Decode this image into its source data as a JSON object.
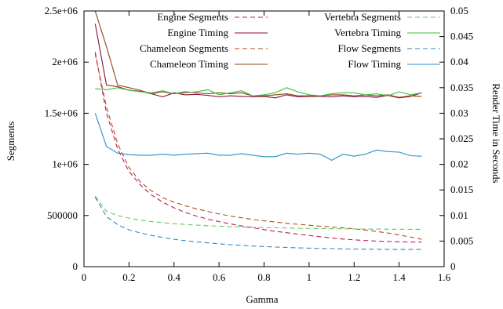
{
  "chart_data": {
    "type": "line",
    "xlabel": "Gamma",
    "ylabel": "Segments",
    "y2label": "Render Time in Seconds",
    "xlim": [
      0,
      1.6
    ],
    "ylim": [
      0,
      2500000
    ],
    "y2lim": [
      0,
      0.05
    ],
    "xticks": [
      "0",
      "0.2",
      "0.4",
      "0.6",
      "0.8",
      "1",
      "1.2",
      "1.4",
      "1.6"
    ],
    "yticks": [
      "0",
      "500000",
      "1e+06",
      "1.5e+06",
      "2e+06",
      "2.5e+06"
    ],
    "y2ticks": [
      "0",
      "0.005",
      "0.01",
      "0.015",
      "0.02",
      "0.025",
      "0.03",
      "0.035",
      "0.04",
      "0.045",
      "0.05"
    ],
    "legend_position": "top",
    "grid": false,
    "x": [
      0.05,
      0.1,
      0.15,
      0.2,
      0.25,
      0.3,
      0.35,
      0.4,
      0.45,
      0.5,
      0.55,
      0.6,
      0.65,
      0.7,
      0.75,
      0.8,
      0.85,
      0.9,
      0.95,
      1.0,
      1.05,
      1.1,
      1.15,
      1.2,
      1.25,
      1.3,
      1.35,
      1.4,
      1.45,
      1.5
    ],
    "series": [
      {
        "name": "Engine Segments",
        "axis": "y1",
        "dash": true,
        "color": "#c0185a",
        "values": [
          2100000,
          1500000,
          1150000,
          930000,
          800000,
          700000,
          630000,
          575000,
          530000,
          495000,
          465000,
          440000,
          418000,
          398000,
          380000,
          362000,
          346000,
          332000,
          318000,
          305000,
          292000,
          280000,
          270000,
          262000,
          255000,
          250000,
          246000,
          243000,
          241000,
          240000
        ]
      },
      {
        "name": "Engine Timing",
        "axis": "y2",
        "dash": false,
        "color": "#8a0f3c",
        "values": [
          0.0475,
          0.0355,
          0.0352,
          0.0345,
          0.0343,
          0.0338,
          0.0332,
          0.034,
          0.0336,
          0.0337,
          0.0335,
          0.0332,
          0.0334,
          0.0333,
          0.0332,
          0.0333,
          0.033,
          0.0336,
          0.0332,
          0.0333,
          0.0333,
          0.0332,
          0.0334,
          0.0332,
          0.0333,
          0.0331,
          0.0335,
          0.033,
          0.0333,
          0.034
        ]
      },
      {
        "name": "Chameleon Segments",
        "axis": "y1",
        "dash": true,
        "color": "#b34d1a",
        "values": [
          2080000,
          1560000,
          1200000,
          970000,
          830000,
          740000,
          675000,
          630000,
          595000,
          565000,
          540000,
          515000,
          495000,
          478000,
          462000,
          448000,
          436000,
          424000,
          414000,
          405000,
          396000,
          388000,
          380000,
          370000,
          358000,
          344000,
          328000,
          310000,
          290000,
          268000
        ]
      },
      {
        "name": "Chameleon Timing",
        "axis": "y2",
        "dash": false,
        "color": "#8b4513",
        "values": [
          0.05,
          0.043,
          0.0355,
          0.035,
          0.0345,
          0.0338,
          0.0342,
          0.0338,
          0.0342,
          0.034,
          0.0338,
          0.034,
          0.0338,
          0.034,
          0.0334,
          0.0334,
          0.0336,
          0.0338,
          0.0334,
          0.0334,
          0.0334,
          0.0336,
          0.0336,
          0.0334,
          0.0336,
          0.0334,
          0.0336,
          0.0331,
          0.0334,
          0.0333
        ]
      },
      {
        "name": "Vertebra Segments",
        "axis": "y1",
        "dash": true,
        "color": "#5ccc5c",
        "values": [
          690000,
          540000,
          500000,
          475000,
          455000,
          440000,
          430000,
          420000,
          413000,
          406000,
          400000,
          396000,
          392000,
          388000,
          385000,
          382000,
          380000,
          378000,
          376000,
          374000,
          372000,
          371000,
          370000,
          369000,
          368000,
          367000,
          366000,
          366000,
          365000,
          365000
        ]
      },
      {
        "name": "Vertebra Timing",
        "axis": "y2",
        "dash": false,
        "color": "#3dbd3d",
        "values": [
          0.0348,
          0.0346,
          0.035,
          0.0345,
          0.0342,
          0.034,
          0.0344,
          0.0338,
          0.034,
          0.0342,
          0.0346,
          0.0336,
          0.034,
          0.0344,
          0.0334,
          0.0336,
          0.034,
          0.035,
          0.0342,
          0.0336,
          0.0334,
          0.0338,
          0.034,
          0.034,
          0.0336,
          0.0338,
          0.0334,
          0.0342,
          0.0336,
          0.034
        ]
      },
      {
        "name": "Flow Segments",
        "axis": "y1",
        "dash": true,
        "color": "#2f86c8",
        "values": [
          680000,
          490000,
          410000,
          360000,
          330000,
          305000,
          285000,
          268000,
          254000,
          242000,
          232000,
          223000,
          215000,
          208000,
          202000,
          197000,
          192000,
          188000,
          184000,
          181000,
          178000,
          176000,
          174000,
          172000,
          171000,
          170000,
          169000,
          168000,
          168000,
          168000
        ]
      },
      {
        "name": "Flow Timing",
        "axis": "y2",
        "dash": false,
        "color": "#2a8fc9",
        "values": [
          0.03,
          0.0235,
          0.0222,
          0.0219,
          0.0218,
          0.0218,
          0.022,
          0.0218,
          0.022,
          0.0221,
          0.0222,
          0.0218,
          0.0218,
          0.0221,
          0.0218,
          0.0215,
          0.0215,
          0.0222,
          0.022,
          0.0222,
          0.022,
          0.0208,
          0.022,
          0.0216,
          0.022,
          0.0228,
          0.0225,
          0.0224,
          0.0217,
          0.0216
        ]
      }
    ]
  }
}
